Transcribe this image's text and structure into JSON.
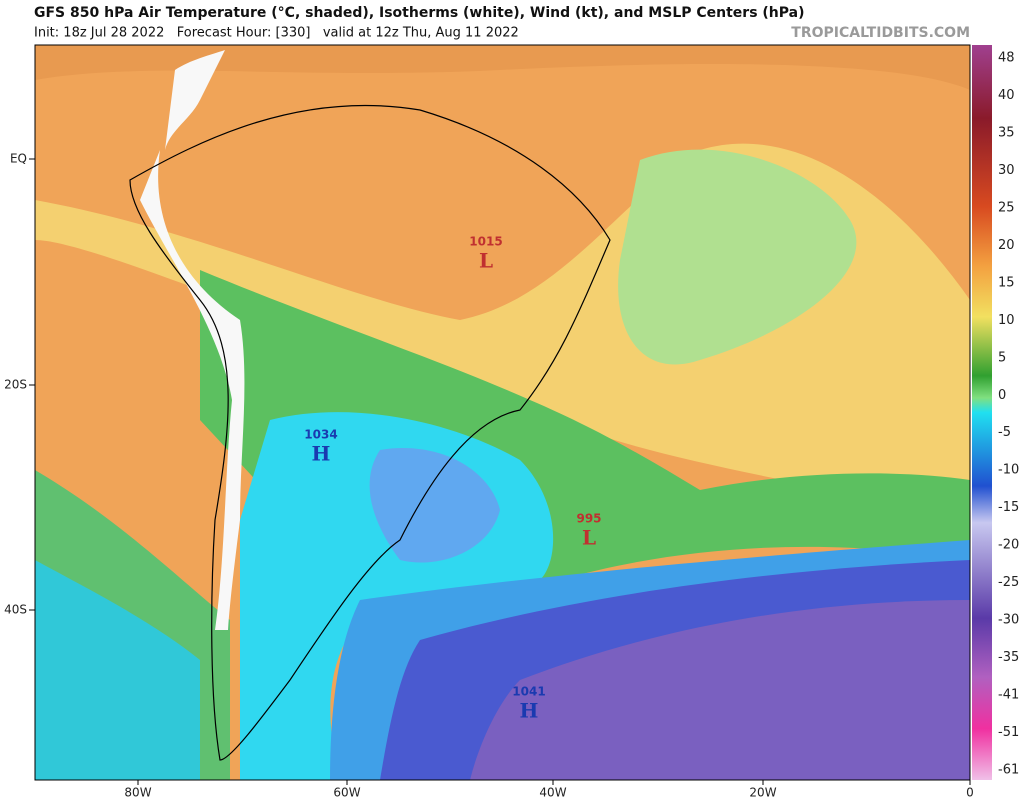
{
  "header": {
    "title": "GFS 850 hPa Air Temperature (°C, shaded), Isotherms (white), Wind (kt), and MSLP Centers (hPa)",
    "subtitle": "Init: 18z Jul 28 2022   Forecast Hour: [330]   valid at 12z Thu, Aug 11 2022",
    "watermark": "TROPICALTIDBITS.COM"
  },
  "latitude_labels": [
    "EQ",
    "20S",
    "40S"
  ],
  "longitude_labels": [
    "80W",
    "60W",
    "40W",
    "20W",
    "0"
  ],
  "pressure_centers": [
    {
      "value": "1015",
      "letter": "L"
    },
    {
      "value": "1034",
      "letter": "H"
    },
    {
      "value": "995",
      "letter": "L"
    },
    {
      "value": "1041",
      "letter": "H"
    }
  ],
  "colorbar_labels": [
    "48",
    "40",
    "35",
    "30",
    "25",
    "20",
    "15",
    "10",
    "5",
    "0",
    "-5",
    "-10",
    "-15",
    "-20",
    "-25",
    "-30",
    "-35",
    "-41",
    "-51",
    "-61"
  ]
}
